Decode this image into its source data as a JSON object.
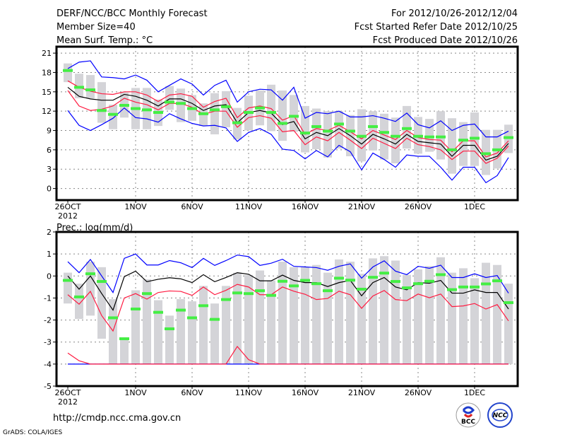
{
  "header": {
    "title": "DERF/NCC/BCC Monthly Forecast",
    "member_size": "Member Size=40",
    "variable": "Mean Surf. Temp.: °C",
    "period": "For 2012/10/26-2012/12/04",
    "start_date": "Fcst Started Refer Date 2012/10/25",
    "produced_date": "Fcst Produced Date 2012/10/26"
  },
  "footer": {
    "url": "http://cmdp.ncc.cma.gov.cn",
    "credit": "GrADS: COLA/IGES",
    "logos": [
      "BCC",
      "NCC"
    ]
  },
  "colors": {
    "mean": "#000000",
    "sd": "#ff1a40",
    "extreme": "#0000ff",
    "obs": "#44ee44",
    "range": "#d4d4d8",
    "grid": "#888888"
  },
  "chart_data": [
    {
      "type": "line",
      "title": "Mean Surf. Temp.: °C",
      "ylim": [
        -1.8,
        22
      ],
      "yticks": [
        0,
        3,
        6,
        9,
        12,
        15,
        18,
        21
      ],
      "xtick_days": [
        0,
        6,
        11,
        16,
        21,
        26,
        31,
        36
      ],
      "xtick_labels": [
        "26OCT",
        "1NOV",
        "6NOV",
        "11NOV",
        "16NOV",
        "21NOV",
        "26NOV",
        "1DEC"
      ],
      "xtick_sublabel": "2012",
      "grid": true,
      "series": {
        "mean": [
          15.7,
          14.3,
          13.9,
          13.7,
          13.7,
          14.6,
          14.3,
          13.7,
          12.8,
          13.9,
          13.9,
          13.2,
          12.1,
          12.8,
          13.0,
          10.2,
          11.8,
          12.1,
          11.7,
          9.9,
          10.4,
          7.7,
          8.7,
          8.2,
          9.3,
          8.2,
          6.9,
          8.4,
          7.7,
          6.9,
          8.4,
          7.3,
          7.1,
          6.9,
          5.0,
          6.7,
          6.7,
          4.4,
          5.0,
          7.0
        ],
        "sd_upper": [
          16.7,
          15.7,
          15.1,
          14.7,
          14.6,
          15.0,
          15.0,
          14.5,
          13.5,
          14.5,
          14.7,
          14.3,
          12.6,
          13.5,
          14.0,
          11.0,
          12.5,
          12.8,
          12.4,
          10.6,
          11.3,
          8.4,
          9.3,
          9.0,
          9.8,
          8.8,
          7.7,
          9.0,
          8.3,
          7.6,
          9.0,
          7.9,
          7.6,
          7.5,
          5.7,
          7.4,
          7.4,
          4.9,
          5.5,
          7.4
        ],
        "sd_lower": [
          15.2,
          12.8,
          12.1,
          12.3,
          12.8,
          14.0,
          13.4,
          13.0,
          12.2,
          13.2,
          13.2,
          12.6,
          11.5,
          12.0,
          12.0,
          9.5,
          11.0,
          11.3,
          10.9,
          8.8,
          9.0,
          6.8,
          8.0,
          7.4,
          8.7,
          7.5,
          6.2,
          7.8,
          7.0,
          6.2,
          7.8,
          6.8,
          6.5,
          6.0,
          4.5,
          5.8,
          5.8,
          3.9,
          4.7,
          6.6
        ],
        "max": [
          18.6,
          19.6,
          19.8,
          17.3,
          17.2,
          17.0,
          17.6,
          16.8,
          15.0,
          16.0,
          17.0,
          16.2,
          14.5,
          16.0,
          16.8,
          13.4,
          15.0,
          15.4,
          15.3,
          13.7,
          15.7,
          10.9,
          11.8,
          11.6,
          12.0,
          11.1,
          11.1,
          11.3,
          10.9,
          10.4,
          11.7,
          9.9,
          9.4,
          10.5,
          9.0,
          9.8,
          10.0,
          8.0,
          8.0,
          8.9
        ],
        "min": [
          12.1,
          9.8,
          9.0,
          9.9,
          10.9,
          12.5,
          11.0,
          10.8,
          10.3,
          11.6,
          10.8,
          10.1,
          9.7,
          9.8,
          9.4,
          7.3,
          8.7,
          9.3,
          8.4,
          6.1,
          5.9,
          4.6,
          5.9,
          4.9,
          6.7,
          5.7,
          2.9,
          5.5,
          4.5,
          3.3,
          5.2,
          5.0,
          5.0,
          3.3,
          1.3,
          3.3,
          3.3,
          0.9,
          2.0,
          4.8
        ],
        "obs": [
          18.3,
          15.7,
          15.3,
          12.1,
          11.5,
          12.9,
          12.4,
          12.2,
          11.8,
          13.4,
          13.2,
          12.4,
          11.6,
          12.2,
          12.7,
          10.2,
          11.8,
          12.5,
          11.8,
          10.1,
          11.2,
          8.6,
          9.6,
          8.9,
          10.0,
          8.9,
          8.1,
          9.6,
          8.7,
          8.1,
          9.3,
          8.1,
          8.0,
          8.0,
          6.0,
          7.5,
          7.8,
          5.4,
          6.0,
          7.9
        ],
        "range_low": [
          16.5,
          14.0,
          14.0,
          10.2,
          9.2,
          11.0,
          9.2,
          9.2,
          9.7,
          12.2,
          10.3,
          10.5,
          9.7,
          8.4,
          9.5,
          7.6,
          9.0,
          9.8,
          8.9,
          7.4,
          8.8,
          5.6,
          6.1,
          4.8,
          6.2,
          5.0,
          4.2,
          5.9,
          4.5,
          3.9,
          6.2,
          5.4,
          5.7,
          4.5,
          2.3,
          3.5,
          3.5,
          2.1,
          3.1,
          5.5
        ],
        "range_high": [
          19.4,
          17.8,
          17.6,
          16.5,
          13.0,
          14.9,
          15.6,
          15.6,
          13.8,
          15.9,
          15.5,
          14.5,
          13.2,
          14.8,
          15.1,
          12.5,
          14.4,
          15.2,
          16.1,
          15.2,
          14.5,
          12.8,
          12.4,
          12.0,
          12.0,
          11.4,
          12.3,
          12.0,
          11.6,
          11.0,
          12.8,
          11.1,
          10.8,
          12.0,
          10.9,
          10.3,
          11.8,
          9.1,
          9.1,
          9.9
        ]
      }
    },
    {
      "type": "line",
      "title": "Prec.: log(mm/d)",
      "ylim": [
        -5,
        2
      ],
      "yticks": [
        -5,
        -4,
        -3,
        -2,
        -1,
        0,
        1,
        2
      ],
      "xtick_days": [
        0,
        6,
        11,
        16,
        21,
        26,
        31,
        36
      ],
      "xtick_labels": [
        "26OCT",
        "1NOV",
        "6NOV",
        "11NOV",
        "16NOV",
        "21NOV",
        "26NOV",
        "1DEC"
      ],
      "xtick_sublabel": "2012",
      "grid": true,
      "series": {
        "mean": [
          0.0,
          -0.6,
          0.0,
          -0.8,
          -1.55,
          -0.03,
          0.22,
          -0.26,
          -0.15,
          -0.08,
          -0.13,
          -0.3,
          0.06,
          -0.26,
          -0.07,
          0.15,
          0.08,
          -0.22,
          -0.22,
          0.04,
          -0.2,
          -0.3,
          -0.3,
          -0.48,
          -0.3,
          -0.2,
          -0.9,
          -0.3,
          -0.07,
          -0.5,
          -0.63,
          -0.3,
          -0.33,
          -0.2,
          -0.78,
          -0.78,
          -0.63,
          -0.75,
          -0.75,
          -1.5
        ],
        "sd_upper": [
          -0.85,
          -1.28,
          -0.7,
          -1.8,
          -2.5,
          -1.0,
          -0.8,
          -1.05,
          -0.75,
          -0.68,
          -0.7,
          -0.88,
          -0.5,
          -0.85,
          -0.65,
          -0.38,
          -0.5,
          -0.85,
          -0.85,
          -0.5,
          -0.69,
          -0.83,
          -1.07,
          -1.02,
          -0.69,
          -0.85,
          -1.47,
          -0.91,
          -0.66,
          -1.07,
          -1.12,
          -0.82,
          -0.99,
          -0.82,
          -1.39,
          -1.36,
          -1.25,
          -1.5,
          -1.3,
          -2.04
        ],
        "sd_lower": [
          -3.5,
          -3.85,
          -4,
          -4,
          -4,
          -4,
          -4,
          -4,
          -4,
          -4,
          -4,
          -4,
          -4,
          -4,
          -4,
          -3.2,
          -3.8,
          -4,
          -4,
          -4,
          -4,
          -4,
          -4,
          -4,
          -4,
          -4,
          -4,
          -4,
          -4,
          -4,
          -4,
          -4,
          -4,
          -4,
          -4,
          -4,
          -4,
          -4,
          -4,
          -4
        ],
        "max": [
          0.65,
          0.15,
          0.75,
          0.0,
          -0.75,
          0.8,
          1.0,
          0.5,
          0.5,
          0.7,
          0.6,
          0.38,
          0.8,
          0.48,
          0.7,
          0.95,
          0.88,
          0.48,
          0.58,
          0.76,
          0.44,
          0.41,
          0.38,
          0.26,
          0.44,
          0.55,
          -0.1,
          0.41,
          0.69,
          0.22,
          0.06,
          0.44,
          0.35,
          0.49,
          -0.07,
          -0.07,
          0.1,
          -0.07,
          0.02,
          -0.78
        ],
        "min": [
          -4,
          -4,
          -4,
          -4,
          -4,
          -4,
          -4,
          -4,
          -4,
          -4,
          -4,
          -4,
          -4,
          -4,
          -4,
          -4,
          -4,
          -4,
          -4,
          -4,
          -4,
          -4,
          -4,
          -4,
          -4,
          -4,
          -4,
          -4,
          -4,
          -4,
          -4,
          -4,
          -4,
          -4,
          -4,
          -4,
          -4,
          -4,
          -4,
          -4
        ],
        "obs": [
          -0.2,
          -0.95,
          0.1,
          -0.25,
          -1.9,
          -2.85,
          -1.5,
          -0.8,
          -1.65,
          -2.4,
          -1.55,
          -1.9,
          -1.35,
          -1.97,
          -1.07,
          -0.77,
          -0.8,
          -0.67,
          -0.88,
          -0.24,
          -0.45,
          -0.2,
          -0.35,
          -0.67,
          -0.1,
          -0.19,
          -0.6,
          -0.06,
          0.13,
          -0.25,
          -0.54,
          -0.35,
          -0.24,
          0.06,
          -0.62,
          -0.5,
          -0.5,
          -0.36,
          -0.22,
          -1.21
        ],
        "range_low": [
          -1.25,
          -1.95,
          -1.8,
          -2.85,
          -4,
          -4,
          -4,
          -4,
          -4,
          -4,
          -4,
          -4,
          -4,
          -4,
          -4,
          -4,
          -4,
          -4,
          -4,
          -4,
          -4,
          -4,
          -4,
          -4,
          -4,
          -4,
          -4,
          -4,
          -4,
          -4,
          -4,
          -4,
          -4,
          -4,
          -4,
          -4,
          -4,
          -4,
          -4,
          -4
        ],
        "range_high": [
          0.15,
          -0.35,
          0.65,
          0.4,
          -1.05,
          -2.8,
          -0.65,
          -0.15,
          -1.1,
          -1.8,
          -1.05,
          -1.15,
          -0.45,
          -1.25,
          -0.45,
          0.15,
          0.05,
          0.25,
          -0.2,
          0.65,
          0.4,
          0.4,
          0.5,
          0.15,
          0.75,
          0.65,
          0.1,
          0.8,
          0.9,
          0.7,
          0.05,
          0.3,
          0.45,
          0.85,
          0.15,
          0.35,
          -0.1,
          0.6,
          0.5,
          -0.35
        ]
      }
    }
  ]
}
